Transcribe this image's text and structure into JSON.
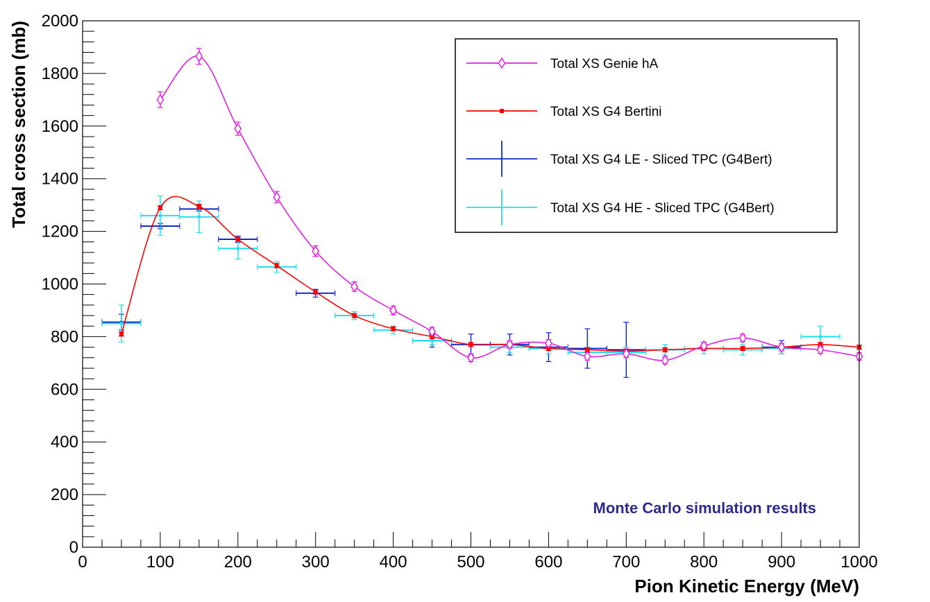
{
  "chart_data": {
    "type": "scatter",
    "title": "",
    "xlabel": "Pion Kinetic Energy (MeV)",
    "ylabel": "Total cross section (mb)",
    "xlim": [
      0,
      1000
    ],
    "ylim": [
      0,
      2000
    ],
    "xticks": [
      0,
      100,
      200,
      300,
      400,
      500,
      600,
      700,
      800,
      900,
      1000
    ],
    "yticks": [
      0,
      200,
      400,
      600,
      800,
      1000,
      1200,
      1400,
      1600,
      1800,
      2000
    ],
    "grid": false,
    "legend_position": "top-right",
    "annotation": "Monte Carlo simulation results",
    "annotation_color": "#2e2a8c",
    "series": [
      {
        "name": "Total XS Genie hA",
        "color": "#e020e0",
        "marker": "open-diamond",
        "smooth": true,
        "x": [
          100,
          150,
          200,
          250,
          300,
          350,
          400,
          450,
          500,
          550,
          600,
          650,
          700,
          750,
          800,
          850,
          900,
          950,
          1000
        ],
        "y": [
          1700,
          1865,
          1590,
          1330,
          1125,
          990,
          900,
          820,
          720,
          770,
          775,
          725,
          735,
          710,
          765,
          795,
          760,
          750,
          725
        ],
        "yerr": [
          30,
          30,
          25,
          22,
          20,
          18,
          16,
          15,
          15,
          14,
          14,
          14,
          14,
          14,
          14,
          14,
          14,
          14,
          14
        ]
      },
      {
        "name": "Total XS G4 Bertini",
        "color": "#ff0000",
        "marker": "small-square",
        "smooth": true,
        "x": [
          50,
          100,
          150,
          200,
          250,
          300,
          350,
          400,
          450,
          500,
          550,
          600,
          650,
          700,
          750,
          800,
          850,
          900,
          950,
          1000
        ],
        "y": [
          810,
          1290,
          1295,
          1170,
          1070,
          970,
          880,
          830,
          800,
          770,
          770,
          755,
          750,
          745,
          750,
          755,
          755,
          760,
          770,
          760
        ],
        "yerr": [
          8,
          8,
          8,
          8,
          8,
          8,
          8,
          8,
          8,
          8,
          8,
          8,
          8,
          8,
          8,
          8,
          8,
          8,
          8,
          8
        ]
      },
      {
        "name": "Total XS G4 LE - Sliced TPC (G4Bert)",
        "color": "#1428d0",
        "marker": "error-cross",
        "smooth": false,
        "x": [
          50,
          100,
          150,
          200,
          300,
          450,
          500,
          550,
          600,
          650,
          700,
          900
        ],
        "y": [
          855,
          1220,
          1285,
          1170,
          965,
          785,
          770,
          770,
          760,
          755,
          750,
          760
        ],
        "xerr": [
          25,
          25,
          25,
          25,
          25,
          25,
          25,
          25,
          25,
          25,
          25,
          25
        ],
        "yerr": [
          30,
          10,
          8,
          12,
          15,
          25,
          40,
          40,
          55,
          75,
          105,
          25
        ]
      },
      {
        "name": "Total XS G4 HE - Sliced TPC (G4Bert)",
        "color": "#20e0f0",
        "marker": "error-cross",
        "smooth": false,
        "x": [
          50,
          100,
          150,
          200,
          250,
          350,
          400,
          450,
          550,
          600,
          650,
          700,
          750,
          800,
          850,
          900,
          950
        ],
        "y": [
          850,
          1260,
          1255,
          1135,
          1065,
          880,
          825,
          785,
          760,
          755,
          740,
          740,
          750,
          755,
          750,
          755,
          800
        ],
        "xerr": [
          25,
          25,
          25,
          25,
          25,
          25,
          25,
          25,
          25,
          25,
          25,
          25,
          25,
          25,
          25,
          25,
          25
        ],
        "yerr": [
          70,
          75,
          60,
          40,
          20,
          15,
          15,
          15,
          20,
          20,
          20,
          20,
          20,
          20,
          20,
          20,
          40
        ]
      }
    ]
  }
}
